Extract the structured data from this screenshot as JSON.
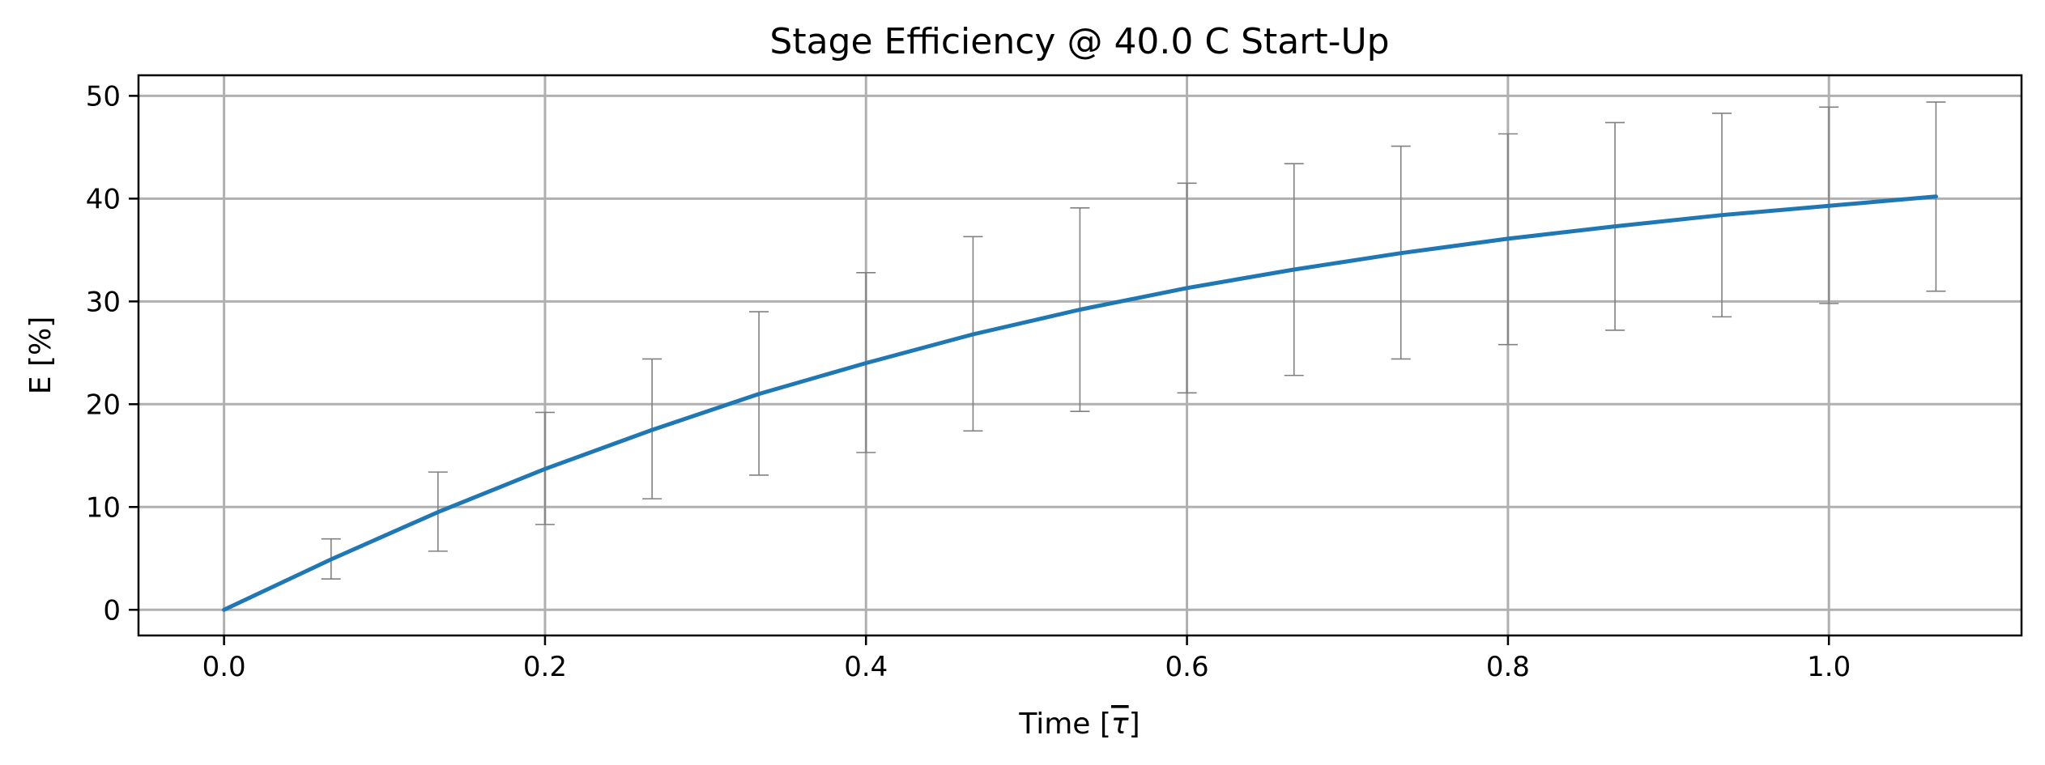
{
  "chart_data": {
    "type": "line",
    "title": "Stage Efficiency @ 40.0 C Start-Up",
    "xlabel_main": "Time [",
    "xlabel_symbol": "τ",
    "xlabel_end": "]",
    "ylabel": "E [%]",
    "xlim": [
      -0.0533,
      1.12
    ],
    "ylim": [
      -2.5,
      52
    ],
    "xticks": [
      0.0,
      0.2,
      0.4,
      0.6,
      0.8,
      1.0
    ],
    "xtick_labels": [
      "0.0",
      "0.2",
      "0.4",
      "0.6",
      "0.8",
      "1.0"
    ],
    "yticks": [
      0,
      10,
      20,
      30,
      40,
      50
    ],
    "ytick_labels": [
      "0",
      "10",
      "20",
      "30",
      "40",
      "50"
    ],
    "grid": true,
    "colors": {
      "line": "#1f77b4",
      "errorbar": "#808080",
      "grid": "#b0b0b0"
    },
    "series": [
      {
        "x": [
          0.0,
          0.0667,
          0.1333,
          0.2,
          0.2667,
          0.3333,
          0.4,
          0.4667,
          0.5333,
          0.6,
          0.6667,
          0.7333,
          0.8,
          0.8667,
          0.9333,
          1.0,
          1.0667
        ],
        "y": [
          0.0,
          4.9,
          9.5,
          13.7,
          17.5,
          21.0,
          24.0,
          26.8,
          29.2,
          31.3,
          33.1,
          34.7,
          36.1,
          37.3,
          38.4,
          39.3,
          40.2
        ],
        "err_low": [
          null,
          3.0,
          5.7,
          8.3,
          10.8,
          13.1,
          15.3,
          17.4,
          19.3,
          21.1,
          22.8,
          24.4,
          25.8,
          27.2,
          28.5,
          29.8,
          31.0
        ],
        "err_high": [
          null,
          6.9,
          13.4,
          19.2,
          24.4,
          29.0,
          32.8,
          36.3,
          39.1,
          41.5,
          43.4,
          45.1,
          46.3,
          47.4,
          48.3,
          48.9,
          49.4
        ]
      }
    ]
  }
}
